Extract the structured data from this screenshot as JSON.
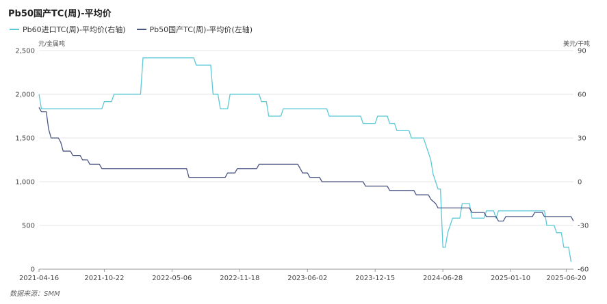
{
  "title": "Pb50国产TC(周)-平均价",
  "source": "数据来源：SMM",
  "chart_data": {
    "type": "line",
    "title": "Pb50国产TC(周)-平均价",
    "left_axis": {
      "unit": "元/金属吨",
      "ylim": [
        0,
        2500
      ],
      "ticks": [
        "0",
        "500",
        "1,000",
        "1,500",
        "2,000",
        "2,500"
      ]
    },
    "right_axis": {
      "unit": "美元/干吨",
      "ylim": [
        -60,
        90
      ],
      "ticks": [
        "-60",
        "-30",
        "0",
        "30",
        "60",
        "90"
      ]
    },
    "x_ticks": [
      "2021-04-16",
      "2021-10-22",
      "2022-05-06",
      "2022-11-18",
      "2023-06-02",
      "2023-12-15",
      "2024-06-28",
      "2025-01-10",
      "2025-06-20"
    ],
    "grid": true,
    "legend_position": "top-left",
    "series": [
      {
        "name": "Pb60进口TC(周)-平均价(右轴)",
        "axis": "right",
        "color": "#5bc8d6",
        "points": [
          [
            "2021-04-16",
            60
          ],
          [
            "2021-04-23",
            50
          ],
          [
            "2021-10-15",
            50
          ],
          [
            "2021-10-22",
            55
          ],
          [
            "2021-11-12",
            55
          ],
          [
            "2021-11-19",
            60
          ],
          [
            "2022-02-04",
            60
          ],
          [
            "2022-02-11",
            85
          ],
          [
            "2022-07-08",
            85
          ],
          [
            "2022-07-15",
            80
          ],
          [
            "2022-08-26",
            80
          ],
          [
            "2022-09-02",
            60
          ],
          [
            "2022-09-16",
            60
          ],
          [
            "2022-09-23",
            50
          ],
          [
            "2022-10-14",
            50
          ],
          [
            "2022-10-21",
            60
          ],
          [
            "2023-01-13",
            60
          ],
          [
            "2023-01-20",
            55
          ],
          [
            "2023-02-03",
            55
          ],
          [
            "2023-02-10",
            45
          ],
          [
            "2023-03-17",
            45
          ],
          [
            "2023-03-24",
            50
          ],
          [
            "2023-07-28",
            50
          ],
          [
            "2023-08-04",
            45
          ],
          [
            "2023-11-03",
            45
          ],
          [
            "2023-11-10",
            40
          ],
          [
            "2023-12-15",
            40
          ],
          [
            "2023-12-22",
            45
          ],
          [
            "2024-01-19",
            45
          ],
          [
            "2024-01-26",
            40
          ],
          [
            "2024-02-09",
            40
          ],
          [
            "2024-02-16",
            35
          ],
          [
            "2024-03-22",
            35
          ],
          [
            "2024-03-29",
            30
          ],
          [
            "2024-05-03",
            30
          ],
          [
            "2024-05-10",
            25
          ],
          [
            "2024-05-17",
            20
          ],
          [
            "2024-05-24",
            15
          ],
          [
            "2024-05-31",
            5
          ],
          [
            "2024-06-07",
            0
          ],
          [
            "2024-06-14",
            -5
          ],
          [
            "2024-06-21",
            -5
          ],
          [
            "2024-06-28",
            -45
          ],
          [
            "2024-07-05",
            -45
          ],
          [
            "2024-07-12",
            -35
          ],
          [
            "2024-07-19",
            -30
          ],
          [
            "2024-07-26",
            -25
          ],
          [
            "2024-08-16",
            -25
          ],
          [
            "2024-08-23",
            -15
          ],
          [
            "2024-09-13",
            -15
          ],
          [
            "2024-09-20",
            -25
          ],
          [
            "2024-10-25",
            -25
          ],
          [
            "2024-11-01",
            -20
          ],
          [
            "2024-11-22",
            -20
          ],
          [
            "2024-11-29",
            -25
          ],
          [
            "2024-12-06",
            -20
          ],
          [
            "2025-04-18",
            -20
          ],
          [
            "2025-04-25",
            -30
          ],
          [
            "2025-05-16",
            -30
          ],
          [
            "2025-05-23",
            -35
          ],
          [
            "2025-06-06",
            -35
          ],
          [
            "2025-06-13",
            -45
          ],
          [
            "2025-06-27",
            -45
          ],
          [
            "2025-07-04",
            -55
          ]
        ]
      },
      {
        "name": "Pb50国产TC(周)-平均价(左轴)",
        "axis": "left",
        "color": "#4a5485",
        "points": [
          [
            "2021-04-16",
            1850
          ],
          [
            "2021-04-23",
            1800
          ],
          [
            "2021-05-07",
            1800
          ],
          [
            "2021-05-14",
            1600
          ],
          [
            "2021-05-21",
            1500
          ],
          [
            "2021-06-11",
            1500
          ],
          [
            "2021-06-18",
            1450
          ],
          [
            "2021-06-25",
            1350
          ],
          [
            "2021-07-16",
            1350
          ],
          [
            "2021-07-23",
            1300
          ],
          [
            "2021-08-13",
            1300
          ],
          [
            "2021-08-20",
            1250
          ],
          [
            "2021-09-03",
            1250
          ],
          [
            "2021-09-10",
            1200
          ],
          [
            "2021-10-08",
            1200
          ],
          [
            "2021-10-15",
            1150
          ],
          [
            "2022-06-17",
            1150
          ],
          [
            "2022-06-24",
            1050
          ],
          [
            "2022-10-07",
            1050
          ],
          [
            "2022-10-14",
            1100
          ],
          [
            "2022-11-04",
            1100
          ],
          [
            "2022-11-11",
            1150
          ],
          [
            "2023-01-06",
            1150
          ],
          [
            "2023-01-13",
            1200
          ],
          [
            "2023-05-05",
            1200
          ],
          [
            "2023-05-12",
            1150
          ],
          [
            "2023-05-19",
            1100
          ],
          [
            "2023-06-02",
            1100
          ],
          [
            "2023-06-09",
            1050
          ],
          [
            "2023-07-07",
            1050
          ],
          [
            "2023-07-14",
            1000
          ],
          [
            "2023-11-10",
            1000
          ],
          [
            "2023-11-17",
            950
          ],
          [
            "2024-01-19",
            950
          ],
          [
            "2024-01-26",
            900
          ],
          [
            "2024-04-05",
            900
          ],
          [
            "2024-04-12",
            850
          ],
          [
            "2024-05-17",
            850
          ],
          [
            "2024-05-24",
            800
          ],
          [
            "2024-06-07",
            750
          ],
          [
            "2024-06-14",
            700
          ],
          [
            "2024-09-13",
            700
          ],
          [
            "2024-09-20",
            650
          ],
          [
            "2024-10-25",
            650
          ],
          [
            "2024-11-01",
            600
          ],
          [
            "2024-11-29",
            600
          ],
          [
            "2024-12-06",
            550
          ],
          [
            "2024-12-20",
            550
          ],
          [
            "2024-12-27",
            600
          ],
          [
            "2025-03-14",
            600
          ],
          [
            "2025-03-21",
            650
          ],
          [
            "2025-04-11",
            650
          ],
          [
            "2025-04-18",
            600
          ],
          [
            "2025-07-04",
            600
          ],
          [
            "2025-07-11",
            550
          ]
        ]
      }
    ]
  }
}
